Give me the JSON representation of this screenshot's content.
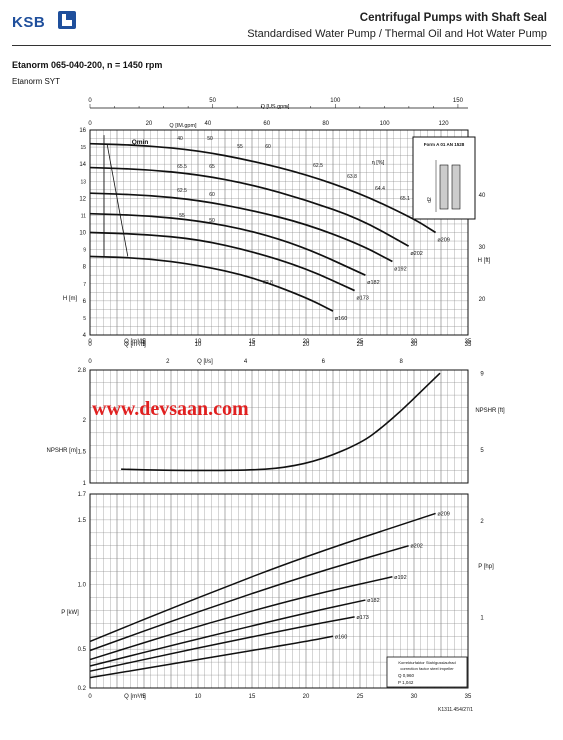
{
  "header": {
    "brand": "KSB",
    "title": "Centrifugal Pumps with Shaft Seal",
    "subtitle": "Standardised Water Pump / Thermal Oil and Hot Water Pump",
    "model": "Etanorm 065-040-200, n = 1450 rpm",
    "series": "Etanorm SYT",
    "watermark": "www.devsaan.com",
    "doc_code": "K1311.454/27/1",
    "correction_box": {
      "title": "Korrekturfaktor Stahlgusslaufrad",
      "title2": "correction factor steel impeller",
      "r1": "Q  0,960",
      "r2": "P  1,042"
    },
    "form_box": {
      "label": "Form A 01 AN 1528",
      "d2": "d2"
    }
  },
  "chart_data": [
    {
      "type": "line",
      "id": "head",
      "xlabel": "Q [m³/h]",
      "ylabel": "H [m]",
      "ylabel_right": "H [ft]",
      "xlim": [
        0,
        35
      ],
      "ylim": [
        4,
        16
      ],
      "xticks": [
        0,
        5,
        10,
        15,
        20,
        25,
        30,
        35
      ],
      "yticks": [
        4,
        6,
        8,
        10,
        12,
        14,
        16
      ],
      "yticks_right": [
        20,
        30,
        40
      ],
      "top_axes": [
        {
          "label": "Q [US.gpm]",
          "ticks": [
            0,
            50,
            100,
            150
          ]
        },
        {
          "label": "Q [IM.gpm]",
          "ticks": [
            0,
            20,
            40,
            60,
            80,
            100,
            120
          ]
        }
      ],
      "qmin_label": "Qmin",
      "eff_label": "η [%]",
      "series": [
        {
          "name": "ø209",
          "x": [
            0,
            5,
            10,
            15,
            20,
            25,
            30,
            32
          ],
          "y": [
            15.2,
            15.1,
            14.8,
            14.2,
            13.4,
            12.3,
            10.8,
            10.0
          ]
        },
        {
          "name": "ø202",
          "x": [
            0,
            5,
            10,
            15,
            20,
            25,
            29.5
          ],
          "y": [
            13.8,
            13.7,
            13.4,
            12.8,
            11.9,
            10.8,
            9.2
          ]
        },
        {
          "name": "ø192",
          "x": [
            0,
            5,
            10,
            15,
            20,
            25,
            28
          ],
          "y": [
            12.3,
            12.2,
            11.9,
            11.3,
            10.5,
            9.3,
            8.3
          ]
        },
        {
          "name": "ø182",
          "x": [
            0,
            5,
            10,
            15,
            20,
            25.5
          ],
          "y": [
            11.1,
            11.0,
            10.7,
            10.1,
            9.1,
            7.5
          ]
        },
        {
          "name": "ø173",
          "x": [
            0,
            5,
            10,
            15,
            20,
            24.5
          ],
          "y": [
            10.0,
            9.9,
            9.6,
            8.9,
            7.9,
            6.6
          ]
        },
        {
          "name": "ø160",
          "x": [
            0,
            5,
            10,
            15,
            20,
            22.5
          ],
          "y": [
            8.6,
            8.5,
            8.1,
            7.4,
            6.2,
            5.4
          ]
        }
      ],
      "efficiency_labels": [
        "40",
        "50",
        "55",
        "60",
        "62.5",
        "63.8",
        "64.4",
        "65.1",
        "65.5",
        "65",
        "62.5",
        "60",
        "55",
        "50",
        "62.8"
      ]
    },
    {
      "type": "line",
      "id": "npsh",
      "xlabel": "Q [l/s]",
      "ylabel": "NPSHR [m]",
      "ylabel_right": "NPSHR [ft]",
      "xlim": [
        0,
        9.72
      ],
      "xticks": [
        0,
        2,
        4,
        6,
        8
      ],
      "ylim": [
        1,
        2.8
      ],
      "yticks": [
        1,
        1.5,
        2,
        2.8
      ],
      "yticks_right": [
        5,
        9
      ],
      "series": [
        {
          "name": "",
          "x": [
            0.8,
            2,
            4,
            5,
            6,
            7,
            7.5,
            8,
            8.5,
            9
          ],
          "y": [
            1.22,
            1.2,
            1.2,
            1.24,
            1.38,
            1.65,
            1.88,
            2.15,
            2.45,
            2.75
          ]
        }
      ]
    },
    {
      "type": "line",
      "id": "power",
      "xlabel": "Q [m³/h]",
      "ylabel": "P [kW]",
      "ylabel_right": "P [hp]",
      "xlim": [
        0,
        35
      ],
      "xticks": [
        0,
        5,
        10,
        15,
        20,
        25,
        30,
        35
      ],
      "ylim": [
        0.2,
        1.7
      ],
      "yticks": [
        0.2,
        0.5,
        1.0,
        1.5,
        1.7
      ],
      "yticks_right": [
        1,
        2
      ],
      "series": [
        {
          "name": "ø209",
          "x": [
            0,
            10,
            20,
            32
          ],
          "y": [
            0.56,
            0.9,
            1.22,
            1.55
          ]
        },
        {
          "name": "ø202",
          "x": [
            0,
            10,
            20,
            29.5
          ],
          "y": [
            0.49,
            0.79,
            1.07,
            1.3
          ]
        },
        {
          "name": "ø192",
          "x": [
            0,
            10,
            20,
            28
          ],
          "y": [
            0.42,
            0.68,
            0.91,
            1.06
          ]
        },
        {
          "name": "ø182",
          "x": [
            0,
            10,
            20,
            25.5
          ],
          "y": [
            0.37,
            0.58,
            0.78,
            0.88
          ]
        },
        {
          "name": "ø173",
          "x": [
            0,
            10,
            20,
            24.5
          ],
          "y": [
            0.33,
            0.51,
            0.68,
            0.75
          ]
        },
        {
          "name": "ø160",
          "x": [
            0,
            10,
            20,
            22.5
          ],
          "y": [
            0.28,
            0.42,
            0.56,
            0.6
          ]
        }
      ]
    }
  ]
}
